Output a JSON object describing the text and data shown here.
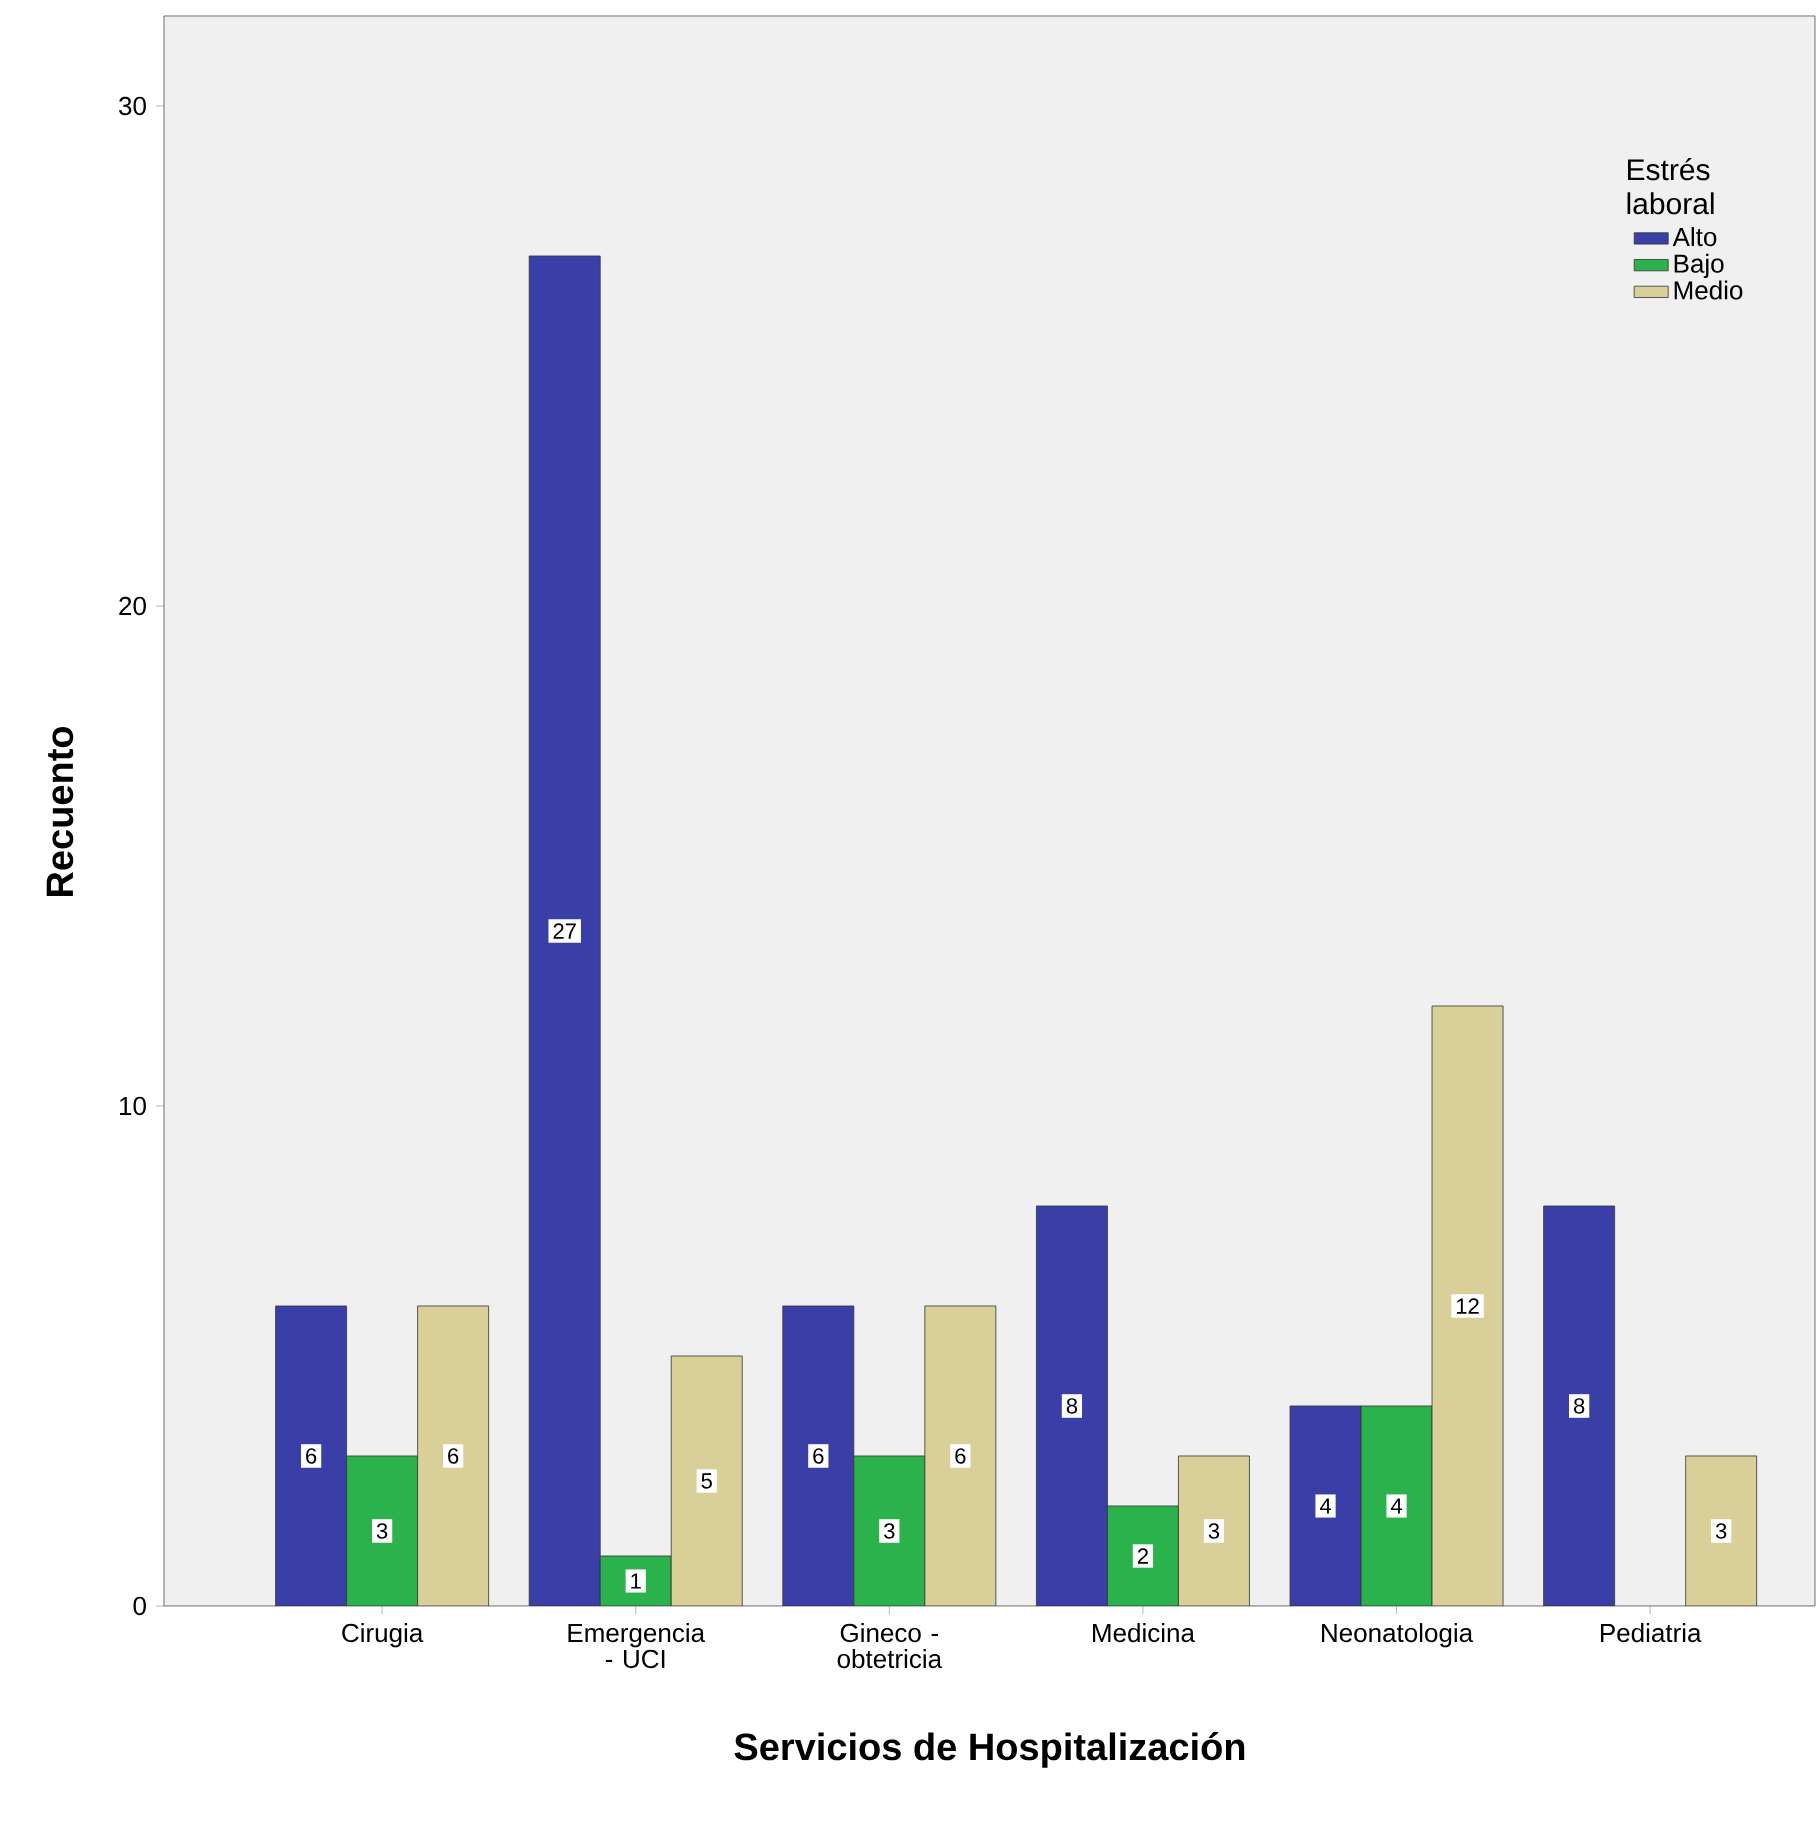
{
  "chart_data": {
    "type": "bar",
    "xlabel": "Servicios de Hospitalización",
    "ylabel": "Recuento",
    "legend_title": "Estrés laboral",
    "legend": "top right",
    "categories": [
      "Cirugia",
      "Emergencia - UCI",
      "Gineco - obtetricia",
      "Medicina",
      "Neonatologia",
      "Pediatria"
    ],
    "ylim": [
      0,
      31.8
    ],
    "yticks": [
      0,
      10,
      20,
      30
    ],
    "series": [
      {
        "name": "Alto",
        "color": "#3a3fa8",
        "values": [
          6,
          27,
          6,
          8,
          4,
          8
        ],
        "value_labels": [
          "6",
          "27",
          "6",
          "8",
          "4",
          "8"
        ]
      },
      {
        "name": "Bajo",
        "color": "#2bb24c",
        "values": [
          3,
          1,
          3,
          2,
          4,
          null
        ],
        "value_labels": [
          "3",
          "1",
          "3",
          "2",
          "4",
          null
        ]
      },
      {
        "name": "Medio",
        "color": "#d8d098",
        "values": [
          6,
          5,
          6,
          3,
          12,
          3
        ],
        "value_labels": [
          "6",
          "5",
          "6",
          "3",
          "12",
          "3"
        ]
      }
    ]
  }
}
